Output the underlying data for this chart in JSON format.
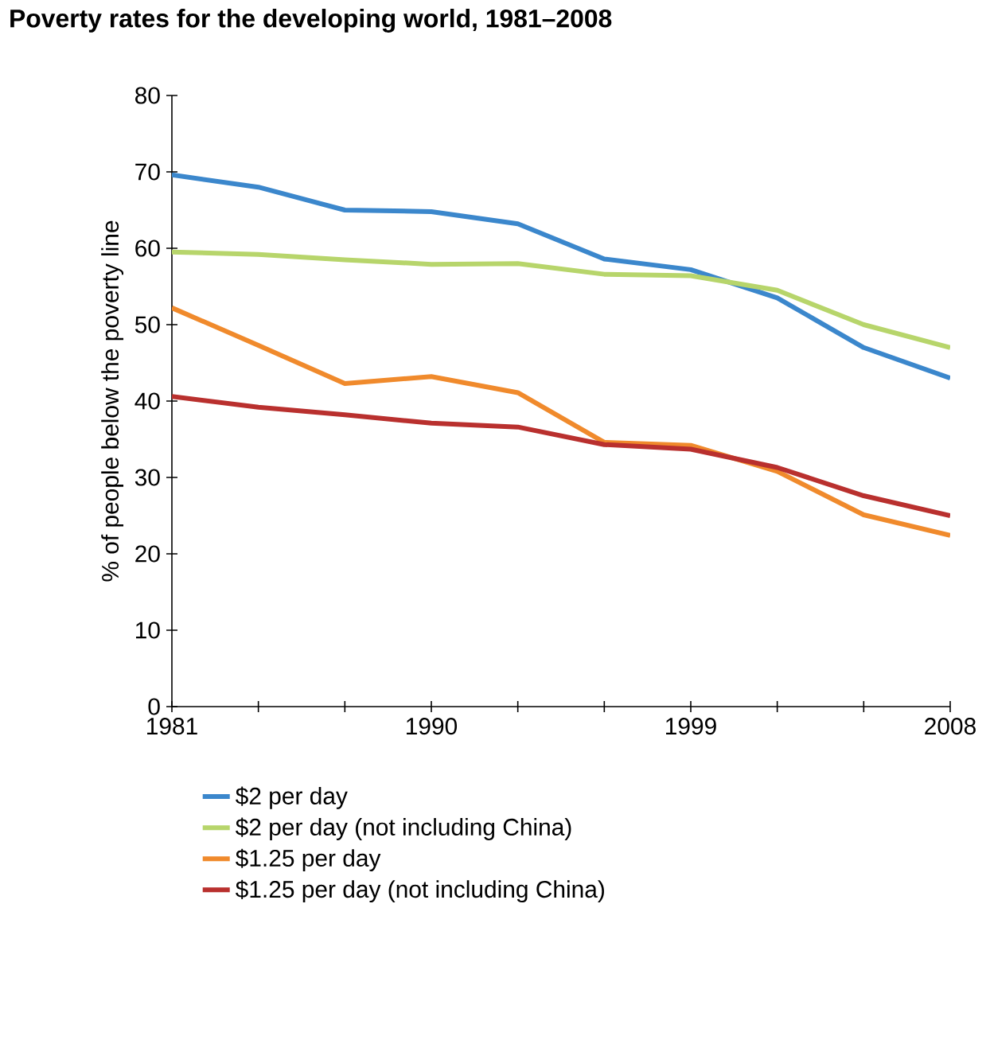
{
  "chart_data": {
    "type": "line",
    "title": "Poverty rates for the developing world, 1981–2008",
    "ylabel": "% of people below the poverty line",
    "x": [
      1981,
      1984,
      1987,
      1990,
      1993,
      1996,
      1999,
      2002,
      2005,
      2008
    ],
    "series": [
      {
        "name": "$2 per day",
        "color": "#3b87cc",
        "values": [
          69.6,
          68,
          65,
          64.8,
          63.2,
          58.6,
          57.2,
          53.5,
          47,
          43
        ]
      },
      {
        "name": "$2 per day (not including China)",
        "color": "#b7d56b",
        "values": [
          59.5,
          59.2,
          58.5,
          57.9,
          58,
          56.6,
          56.4,
          54.5,
          50,
          47
        ]
      },
      {
        "name": "$1.25 per day",
        "color": "#f08a2c",
        "values": [
          52.2,
          47.3,
          42.3,
          43.2,
          41.1,
          34.6,
          34.2,
          30.8,
          25.1,
          22.4
        ]
      },
      {
        "name": "$1.25 per day (not including China)",
        "color": "#b9302e",
        "values": [
          40.6,
          39.2,
          38.2,
          37.1,
          36.6,
          34.3,
          33.7,
          31.3,
          27.6,
          25.0
        ]
      }
    ],
    "xlim": [
      1981,
      2008
    ],
    "xticks": [
      1981,
      {
        "value": 1984,
        "label": null
      },
      {
        "value": 1987,
        "label": null
      },
      1990,
      {
        "value": 1993,
        "label": null
      },
      {
        "value": 1996,
        "label": null
      },
      1999,
      {
        "value": 2002,
        "label": null
      },
      {
        "value": 2005,
        "label": null
      },
      2008
    ],
    "ylim": [
      0,
      80
    ],
    "yticks": [
      0,
      10,
      20,
      30,
      40,
      50,
      60,
      70,
      80
    ],
    "grid": false,
    "legend": "bottom",
    "marker": "none",
    "line_style": "solid"
  }
}
